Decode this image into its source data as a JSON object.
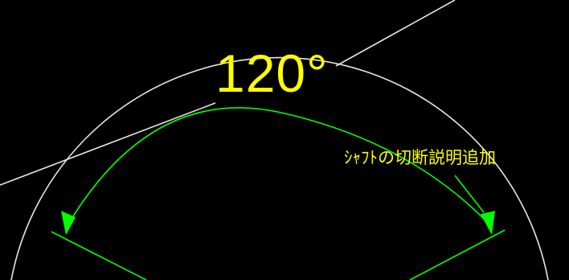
{
  "drawing": {
    "dimension_value": "120°",
    "annotation": "ｼｬﾌﾄの切断説明追加",
    "colors": {
      "background": "#000000",
      "circle": "#e6e6e6",
      "leader": "#e6e6e6",
      "dimension_arc": "#00ff00",
      "text": "#ffff00"
    }
  }
}
